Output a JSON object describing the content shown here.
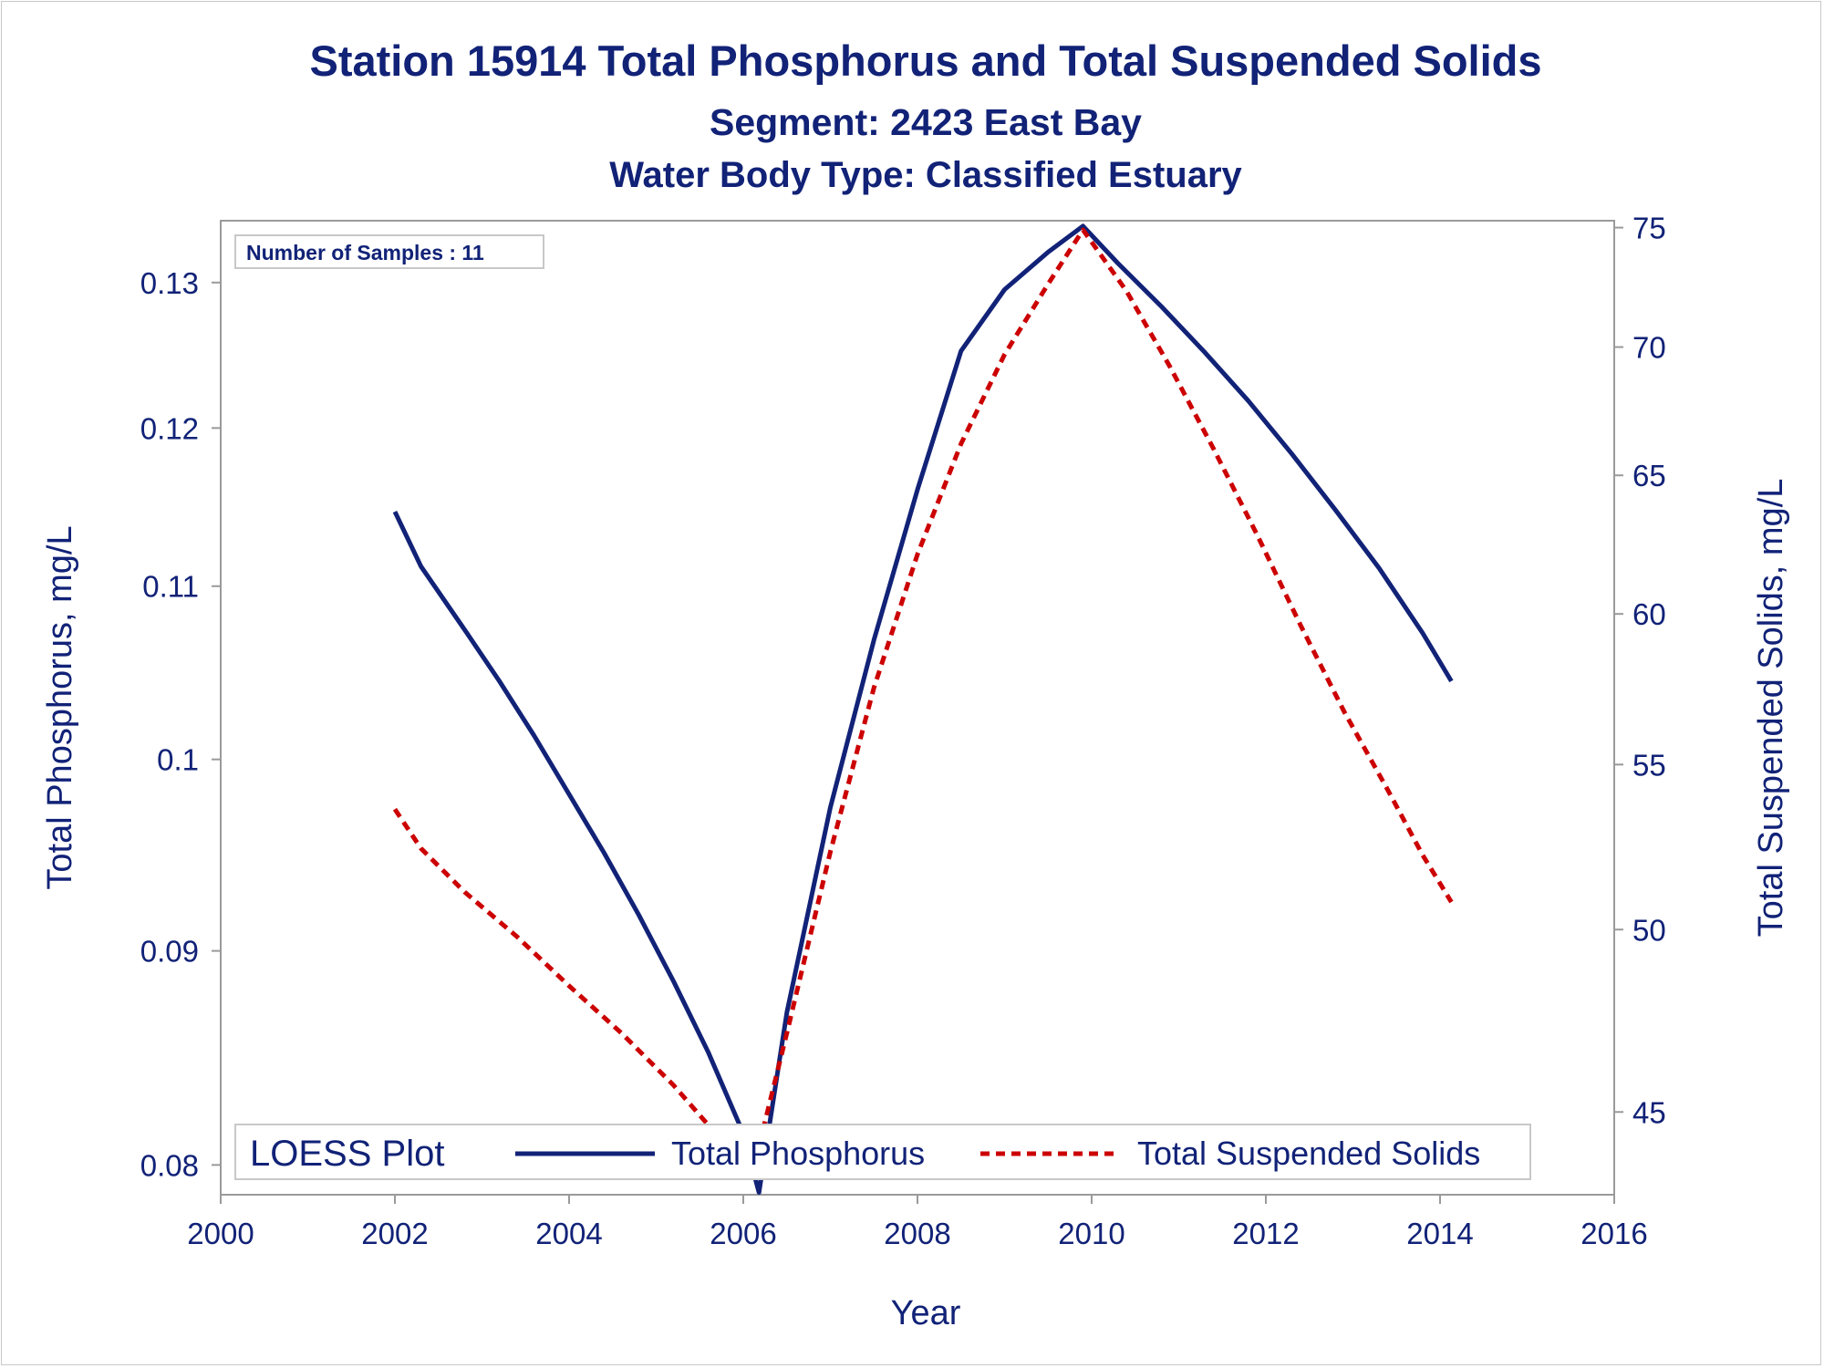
{
  "chart_data": {
    "type": "line",
    "title": "Station 15914  Total Phosphorus and Total Suspended Solids",
    "subtitle": "Segment: 2423  East Bay",
    "subtitle2": "Water Body Type: Classified Estuary",
    "xlabel": "Year",
    "ylabel": "Total Phosphorus, mg/L",
    "y2label": "Total Suspended Solids, mg/L",
    "xlim": [
      2000,
      2016
    ],
    "x_ticks": [
      2000,
      2002,
      2004,
      2006,
      2008,
      2010,
      2012,
      2014,
      2016
    ],
    "y_scale": "log",
    "ylim": [
      0.0787,
      0.1345
    ],
    "y_ticks": [
      0.08,
      0.09,
      0.1,
      0.11,
      0.12,
      0.13
    ],
    "y_tick_labels": [
      "0.08",
      "0.09",
      "0.1",
      "0.11",
      "0.12",
      "0.13"
    ],
    "y2_scale": "log",
    "y2lim": [
      42.9,
      75.3
    ],
    "y2_ticks": [
      45,
      50,
      55,
      60,
      65,
      70,
      75
    ],
    "grid": false,
    "annotation": "Number of Samples : 11",
    "legend": {
      "title": "LOESS Plot",
      "placement": "bottom"
    },
    "series": [
      {
        "name": "Total Phosphorus",
        "axis": "left",
        "color": "#112277",
        "style": "solid",
        "points": [
          [
            2002.0,
            0.1146
          ],
          [
            2002.3,
            0.1112
          ],
          [
            2002.8,
            0.1074
          ],
          [
            2003.2,
            0.1044
          ],
          [
            2003.6,
            0.1013
          ],
          [
            2004.0,
            0.0981
          ],
          [
            2004.4,
            0.095
          ],
          [
            2004.8,
            0.0918
          ],
          [
            2005.2,
            0.0885
          ],
          [
            2005.6,
            0.0851
          ],
          [
            2006.0,
            0.0814
          ],
          [
            2006.18,
            0.0788
          ],
          [
            2006.5,
            0.087
          ],
          [
            2007.0,
            0.0974
          ],
          [
            2007.5,
            0.1068
          ],
          [
            2008.0,
            0.116
          ],
          [
            2008.5,
            0.1252
          ],
          [
            2009.0,
            0.1295
          ],
          [
            2009.5,
            0.1322
          ],
          [
            2009.9,
            0.1341
          ],
          [
            2010.3,
            0.1314
          ],
          [
            2010.8,
            0.1283
          ],
          [
            2011.3,
            0.1251
          ],
          [
            2011.8,
            0.1218
          ],
          [
            2012.3,
            0.1183
          ],
          [
            2012.8,
            0.1147
          ],
          [
            2013.3,
            0.1111
          ],
          [
            2013.8,
            0.1072
          ],
          [
            2014.13,
            0.1044
          ]
        ]
      },
      {
        "name": "Total Suspended Solids",
        "axis": "right",
        "color": "#cc0000",
        "style": "dashed",
        "points": [
          [
            2002.0,
            53.6
          ],
          [
            2002.3,
            52.4
          ],
          [
            2002.8,
            51.1
          ],
          [
            2003.4,
            49.8
          ],
          [
            2004.0,
            48.4
          ],
          [
            2004.6,
            47.1
          ],
          [
            2005.2,
            45.7
          ],
          [
            2005.7,
            44.4
          ],
          [
            2006.1,
            43.4
          ],
          [
            2006.5,
            47.1
          ],
          [
            2007.0,
            52.3
          ],
          [
            2007.5,
            57.5
          ],
          [
            2008.0,
            62.1
          ],
          [
            2008.5,
            66.2
          ],
          [
            2009.0,
            69.7
          ],
          [
            2009.5,
            72.6
          ],
          [
            2009.9,
            74.9
          ],
          [
            2010.4,
            72.3
          ],
          [
            2010.9,
            69.2
          ],
          [
            2011.4,
            66.0
          ],
          [
            2011.9,
            62.8
          ],
          [
            2012.4,
            59.6
          ],
          [
            2012.9,
            56.7
          ],
          [
            2013.4,
            54.2
          ],
          [
            2013.8,
            52.2
          ],
          [
            2014.13,
            50.8
          ]
        ]
      }
    ]
  }
}
